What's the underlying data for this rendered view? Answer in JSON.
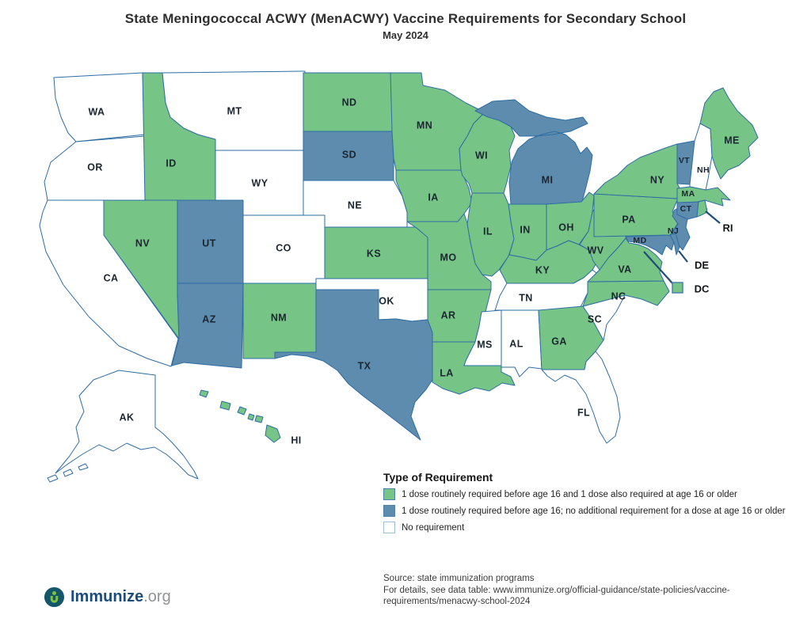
{
  "header": {
    "title": "State Meningococcal ACWY (MenACWY) Vaccine Requirements for Secondary School",
    "subtitle": "May 2024"
  },
  "colors": {
    "green": "#77C487",
    "blue": "#5D8CAE",
    "white": "#FFFFFF",
    "border": "#2E6DA4",
    "callout": "#1F4E79"
  },
  "legend": {
    "title": "Type of Requirement",
    "items": [
      {
        "key": "both",
        "color": "#77C487",
        "border": "#4E81AB",
        "label": "1 dose routinely required before age 16 and 1 dose also required at age 16 or older"
      },
      {
        "key": "before16",
        "color": "#5D8CAE",
        "border": "#4E81AB",
        "label": "1 dose routinely required before age 16; no additional requirement for a dose at age 16 or older"
      },
      {
        "key": "none",
        "color": "#FFFFFF",
        "border": "#9CC0D8",
        "label": "No requirement"
      }
    ]
  },
  "source": {
    "line1": "Source: state immunization programs",
    "line2": "For details, see data table: www.immunize.org/official-guidance/state-policies/vaccine-",
    "line3": "requirements/menacwy-school-2024"
  },
  "logo": {
    "name": "Immunize",
    "suffix": ".org"
  },
  "chart_data": {
    "type": "choropleth",
    "title": "State Meningococcal ACWY (MenACWY) Vaccine Requirements for Secondary School",
    "subtitle": "May 2024",
    "legend_position": "bottom-center",
    "categories": {
      "both": "1 dose routinely required before age 16 and 1 dose also required at age 16 or older",
      "before16": "1 dose routinely required before age 16; no additional requirement for a dose at age 16 or older",
      "none": "No requirement"
    },
    "states": [
      {
        "abbr": "WA",
        "requirement": "none"
      },
      {
        "abbr": "OR",
        "requirement": "none"
      },
      {
        "abbr": "CA",
        "requirement": "none"
      },
      {
        "abbr": "NV",
        "requirement": "both"
      },
      {
        "abbr": "ID",
        "requirement": "both"
      },
      {
        "abbr": "MT",
        "requirement": "none"
      },
      {
        "abbr": "WY",
        "requirement": "none"
      },
      {
        "abbr": "UT",
        "requirement": "before16"
      },
      {
        "abbr": "CO",
        "requirement": "none"
      },
      {
        "abbr": "AZ",
        "requirement": "before16"
      },
      {
        "abbr": "NM",
        "requirement": "both"
      },
      {
        "abbr": "ND",
        "requirement": "both"
      },
      {
        "abbr": "SD",
        "requirement": "before16"
      },
      {
        "abbr": "NE",
        "requirement": "none"
      },
      {
        "abbr": "KS",
        "requirement": "both"
      },
      {
        "abbr": "OK",
        "requirement": "none"
      },
      {
        "abbr": "TX",
        "requirement": "before16"
      },
      {
        "abbr": "MN",
        "requirement": "both"
      },
      {
        "abbr": "IA",
        "requirement": "both"
      },
      {
        "abbr": "MO",
        "requirement": "both"
      },
      {
        "abbr": "AR",
        "requirement": "both"
      },
      {
        "abbr": "LA",
        "requirement": "both"
      },
      {
        "abbr": "WI",
        "requirement": "both"
      },
      {
        "abbr": "IL",
        "requirement": "both"
      },
      {
        "abbr": "IN",
        "requirement": "both"
      },
      {
        "abbr": "MI",
        "requirement": "before16"
      },
      {
        "abbr": "OH",
        "requirement": "both"
      },
      {
        "abbr": "KY",
        "requirement": "both"
      },
      {
        "abbr": "TN",
        "requirement": "none"
      },
      {
        "abbr": "MS",
        "requirement": "none"
      },
      {
        "abbr": "AL",
        "requirement": "none"
      },
      {
        "abbr": "GA",
        "requirement": "both"
      },
      {
        "abbr": "FL",
        "requirement": "none"
      },
      {
        "abbr": "SC",
        "requirement": "none"
      },
      {
        "abbr": "NC",
        "requirement": "both"
      },
      {
        "abbr": "VA",
        "requirement": "both"
      },
      {
        "abbr": "WV",
        "requirement": "both"
      },
      {
        "abbr": "PA",
        "requirement": "both"
      },
      {
        "abbr": "NY",
        "requirement": "both"
      },
      {
        "abbr": "NJ",
        "requirement": "before16"
      },
      {
        "abbr": "MD",
        "requirement": "before16"
      },
      {
        "abbr": "DE",
        "requirement": "before16"
      },
      {
        "abbr": "DC",
        "requirement": "both"
      },
      {
        "abbr": "VT",
        "requirement": "before16"
      },
      {
        "abbr": "NH",
        "requirement": "none"
      },
      {
        "abbr": "ME",
        "requirement": "both"
      },
      {
        "abbr": "MA",
        "requirement": "both"
      },
      {
        "abbr": "CT",
        "requirement": "before16"
      },
      {
        "abbr": "RI",
        "requirement": "both"
      },
      {
        "abbr": "AK",
        "requirement": "none"
      },
      {
        "abbr": "HI",
        "requirement": "both"
      }
    ]
  }
}
